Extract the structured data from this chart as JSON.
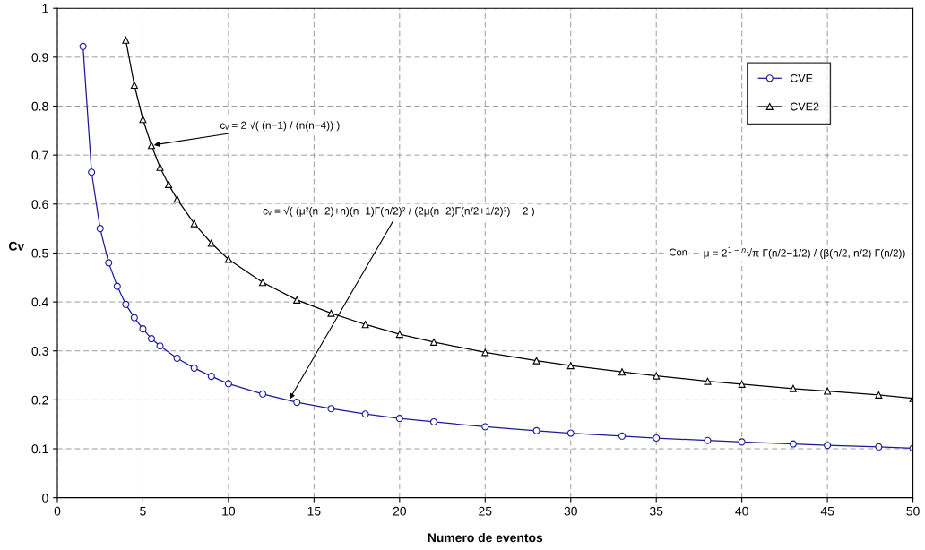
{
  "chart_data": {
    "type": "line",
    "xlabel": "Numero de eventos",
    "ylabel": "Cv",
    "xlim": [
      0,
      50
    ],
    "xticks": [
      0,
      5,
      10,
      15,
      20,
      25,
      30,
      35,
      40,
      45,
      50
    ],
    "ylim": [
      0,
      1
    ],
    "yticks": [
      0,
      0.1,
      0.2,
      0.3,
      0.4,
      0.5,
      0.6,
      0.7,
      0.8,
      0.9,
      1
    ],
    "grid": true,
    "legend": "top right",
    "series": [
      {
        "name": "CVE",
        "color": "#1a1a99",
        "marker": "circle",
        "x": [
          1.5,
          2,
          2.5,
          3,
          3.5,
          4,
          4.5,
          5,
          5.5,
          6,
          7,
          8,
          9,
          10,
          12,
          14,
          16,
          18,
          20,
          22,
          25,
          28,
          30,
          33,
          35,
          38,
          40,
          43,
          45,
          48,
          50
        ],
        "values": [
          0.922,
          0.665,
          0.55,
          0.48,
          0.432,
          0.395,
          0.368,
          0.345,
          0.325,
          0.31,
          0.285,
          0.265,
          0.248,
          0.233,
          0.212,
          0.195,
          0.182,
          0.171,
          0.162,
          0.155,
          0.145,
          0.137,
          0.132,
          0.126,
          0.122,
          0.117,
          0.114,
          0.11,
          0.107,
          0.104,
          0.101
        ]
      },
      {
        "name": "CVE2",
        "color": "#000000",
        "marker": "triangle",
        "x": [
          4,
          4.5,
          5,
          5.5,
          6,
          6.5,
          7,
          8,
          9,
          10,
          12,
          14,
          16,
          18,
          20,
          22,
          25,
          28,
          30,
          33,
          35,
          38,
          40,
          43,
          45,
          48,
          50
        ],
        "values": [
          0.935,
          0.843,
          0.773,
          0.72,
          0.675,
          0.64,
          0.61,
          0.56,
          0.52,
          0.487,
          0.44,
          0.404,
          0.377,
          0.354,
          0.334,
          0.318,
          0.297,
          0.28,
          0.27,
          0.257,
          0.249,
          0.238,
          0.232,
          0.223,
          0.218,
          0.21,
          0.203
        ]
      }
    ],
    "annotations": [
      {
        "text": "cᵥ = 2 √( (n−1) / (n(n−4)) )",
        "x": 5.5,
        "y": 0.72
      },
      {
        "text": "cᵥ = √( (μ²(n−2)+n)(n−1)Γ(n/2)² / (2μ(n−2)Γ(n/2+1/2)²) − 2 )",
        "x": 13.5,
        "y": 0.197
      },
      "Con",
      "μ = 2$^{1−n}$√π Γ(n/2−1/2) / (β(n/2, n/2) Γ(n/2))"
    ]
  }
}
